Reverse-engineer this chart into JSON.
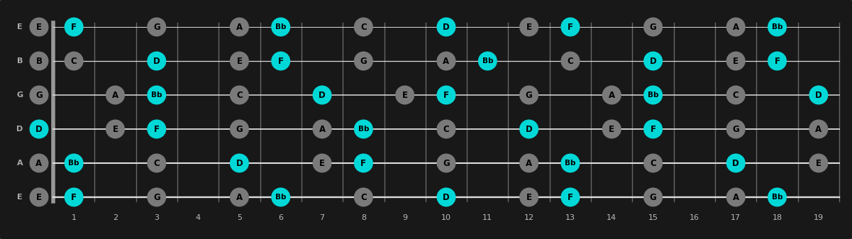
{
  "bg_color": "#3d3d3d",
  "fretboard_color": "#181818",
  "fretboard_bg": "#2a2a2a",
  "string_color": "#dddddd",
  "fret_color": "#666666",
  "note_color_chord": "#00d8d8",
  "note_color_scale": "#7a7a7a",
  "note_text_color": "#000000",
  "string_label_color": "#aaaaaa",
  "fret_label_color": "#bbbbbb",
  "strings": [
    "E",
    "B",
    "G",
    "D",
    "A",
    "E"
  ],
  "num_frets": 19,
  "notes_on_fretboard": [
    {
      "string": 0,
      "fret": 0,
      "note": "E",
      "chord": false
    },
    {
      "string": 0,
      "fret": 1,
      "note": "F",
      "chord": true
    },
    {
      "string": 0,
      "fret": 3,
      "note": "G",
      "chord": false
    },
    {
      "string": 0,
      "fret": 5,
      "note": "A",
      "chord": false
    },
    {
      "string": 0,
      "fret": 6,
      "note": "Bb",
      "chord": true
    },
    {
      "string": 0,
      "fret": 8,
      "note": "C",
      "chord": false
    },
    {
      "string": 0,
      "fret": 10,
      "note": "D",
      "chord": true
    },
    {
      "string": 0,
      "fret": 12,
      "note": "E",
      "chord": false
    },
    {
      "string": 0,
      "fret": 13,
      "note": "F",
      "chord": true
    },
    {
      "string": 0,
      "fret": 15,
      "note": "G",
      "chord": false
    },
    {
      "string": 0,
      "fret": 17,
      "note": "A",
      "chord": false
    },
    {
      "string": 0,
      "fret": 18,
      "note": "Bb",
      "chord": true
    },
    {
      "string": 1,
      "fret": 0,
      "note": "B",
      "chord": false
    },
    {
      "string": 1,
      "fret": 1,
      "note": "C",
      "chord": false
    },
    {
      "string": 1,
      "fret": 3,
      "note": "D",
      "chord": true
    },
    {
      "string": 1,
      "fret": 5,
      "note": "E",
      "chord": false
    },
    {
      "string": 1,
      "fret": 6,
      "note": "F",
      "chord": true
    },
    {
      "string": 1,
      "fret": 8,
      "note": "G",
      "chord": false
    },
    {
      "string": 1,
      "fret": 10,
      "note": "A",
      "chord": false
    },
    {
      "string": 1,
      "fret": 11,
      "note": "Bb",
      "chord": true
    },
    {
      "string": 1,
      "fret": 13,
      "note": "C",
      "chord": false
    },
    {
      "string": 1,
      "fret": 15,
      "note": "D",
      "chord": true
    },
    {
      "string": 1,
      "fret": 17,
      "note": "E",
      "chord": false
    },
    {
      "string": 1,
      "fret": 18,
      "note": "F",
      "chord": true
    },
    {
      "string": 2,
      "fret": 0,
      "note": "G",
      "chord": false
    },
    {
      "string": 2,
      "fret": 2,
      "note": "A",
      "chord": false
    },
    {
      "string": 2,
      "fret": 3,
      "note": "Bb",
      "chord": true
    },
    {
      "string": 2,
      "fret": 5,
      "note": "C",
      "chord": false
    },
    {
      "string": 2,
      "fret": 7,
      "note": "D",
      "chord": true
    },
    {
      "string": 2,
      "fret": 9,
      "note": "E",
      "chord": false
    },
    {
      "string": 2,
      "fret": 10,
      "note": "F",
      "chord": true
    },
    {
      "string": 2,
      "fret": 12,
      "note": "G",
      "chord": false
    },
    {
      "string": 2,
      "fret": 14,
      "note": "A",
      "chord": false
    },
    {
      "string": 2,
      "fret": 15,
      "note": "Bb",
      "chord": true
    },
    {
      "string": 2,
      "fret": 17,
      "note": "C",
      "chord": false
    },
    {
      "string": 2,
      "fret": 19,
      "note": "D",
      "chord": true
    },
    {
      "string": 3,
      "fret": 0,
      "note": "D",
      "chord": true
    },
    {
      "string": 3,
      "fret": 2,
      "note": "E",
      "chord": false
    },
    {
      "string": 3,
      "fret": 3,
      "note": "F",
      "chord": true
    },
    {
      "string": 3,
      "fret": 5,
      "note": "G",
      "chord": false
    },
    {
      "string": 3,
      "fret": 7,
      "note": "A",
      "chord": false
    },
    {
      "string": 3,
      "fret": 8,
      "note": "Bb",
      "chord": true
    },
    {
      "string": 3,
      "fret": 10,
      "note": "C",
      "chord": false
    },
    {
      "string": 3,
      "fret": 12,
      "note": "D",
      "chord": true
    },
    {
      "string": 3,
      "fret": 14,
      "note": "E",
      "chord": false
    },
    {
      "string": 3,
      "fret": 15,
      "note": "F",
      "chord": true
    },
    {
      "string": 3,
      "fret": 17,
      "note": "G",
      "chord": false
    },
    {
      "string": 3,
      "fret": 19,
      "note": "A",
      "chord": false
    },
    {
      "string": 4,
      "fret": 0,
      "note": "A",
      "chord": false
    },
    {
      "string": 4,
      "fret": 1,
      "note": "Bb",
      "chord": true
    },
    {
      "string": 4,
      "fret": 3,
      "note": "C",
      "chord": false
    },
    {
      "string": 4,
      "fret": 5,
      "note": "D",
      "chord": true
    },
    {
      "string": 4,
      "fret": 7,
      "note": "E",
      "chord": false
    },
    {
      "string": 4,
      "fret": 8,
      "note": "F",
      "chord": true
    },
    {
      "string": 4,
      "fret": 10,
      "note": "G",
      "chord": false
    },
    {
      "string": 4,
      "fret": 12,
      "note": "A",
      "chord": false
    },
    {
      "string": 4,
      "fret": 13,
      "note": "Bb",
      "chord": true
    },
    {
      "string": 4,
      "fret": 15,
      "note": "C",
      "chord": false
    },
    {
      "string": 4,
      "fret": 17,
      "note": "D",
      "chord": true
    },
    {
      "string": 4,
      "fret": 19,
      "note": "E",
      "chord": false
    },
    {
      "string": 5,
      "fret": 0,
      "note": "E",
      "chord": false
    },
    {
      "string": 5,
      "fret": 1,
      "note": "F",
      "chord": true
    },
    {
      "string": 5,
      "fret": 3,
      "note": "G",
      "chord": false
    },
    {
      "string": 5,
      "fret": 5,
      "note": "A",
      "chord": false
    },
    {
      "string": 5,
      "fret": 6,
      "note": "Bb",
      "chord": true
    },
    {
      "string": 5,
      "fret": 8,
      "note": "C",
      "chord": false
    },
    {
      "string": 5,
      "fret": 10,
      "note": "D",
      "chord": true
    },
    {
      "string": 5,
      "fret": 12,
      "note": "E",
      "chord": false
    },
    {
      "string": 5,
      "fret": 13,
      "note": "F",
      "chord": true
    },
    {
      "string": 5,
      "fret": 15,
      "note": "G",
      "chord": false
    },
    {
      "string": 5,
      "fret": 17,
      "note": "A",
      "chord": false
    },
    {
      "string": 5,
      "fret": 18,
      "note": "Bb",
      "chord": true
    }
  ]
}
